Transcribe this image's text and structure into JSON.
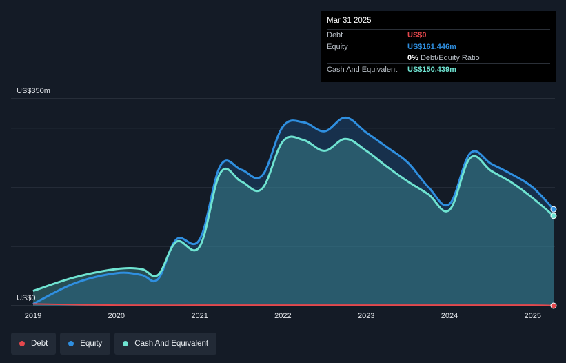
{
  "tooltip": {
    "date": "Mar 31 2025",
    "debt_label": "Debt",
    "debt_value": "US$0",
    "equity_label": "Equity",
    "equity_value": "US$161.446m",
    "ratio_value": "0%",
    "ratio_label": "Debt/Equity Ratio",
    "cash_label": "Cash And Equivalent",
    "cash_value": "US$150.439m"
  },
  "legend": [
    {
      "label": "Debt",
      "color": "#e5484d"
    },
    {
      "label": "Equity",
      "color": "#2f8fe0"
    },
    {
      "label": "Cash And Equivalent",
      "color": "#6fe3d1"
    }
  ],
  "chart_data": {
    "type": "area",
    "y_top_label": "US$350m",
    "y_bottom_label": "US$0",
    "ylim": [
      0,
      350
    ],
    "xlim": [
      2019.0,
      2025.25
    ],
    "x_ticks": [
      "2019",
      "2020",
      "2021",
      "2022",
      "2023",
      "2024",
      "2025"
    ],
    "grid": true,
    "legend_position": "bottom-left",
    "series": [
      {
        "name": "Equity",
        "color": "#2f8fe0",
        "x": [
          2019.0,
          2019.5,
          2020.0,
          2020.3,
          2020.5,
          2020.72,
          2021.0,
          2021.25,
          2021.5,
          2021.75,
          2022.0,
          2022.25,
          2022.5,
          2022.75,
          2023.0,
          2023.25,
          2023.5,
          2023.75,
          2024.0,
          2024.25,
          2024.5,
          2024.75,
          2025.0,
          2025.25
        ],
        "values": [
          3,
          38,
          55,
          52,
          45,
          112,
          112,
          237,
          230,
          220,
          303,
          310,
          295,
          318,
          293,
          268,
          242,
          200,
          172,
          258,
          240,
          222,
          200,
          163
        ]
      },
      {
        "name": "Cash And Equivalent",
        "color": "#6fe3d1",
        "x": [
          2019.0,
          2019.5,
          2020.0,
          2020.3,
          2020.5,
          2020.72,
          2021.0,
          2021.25,
          2021.5,
          2021.75,
          2022.0,
          2022.25,
          2022.5,
          2022.75,
          2023.0,
          2023.25,
          2023.5,
          2023.75,
          2024.0,
          2024.25,
          2024.5,
          2024.75,
          2025.0,
          2025.25
        ],
        "values": [
          25,
          48,
          62,
          62,
          52,
          108,
          100,
          225,
          210,
          198,
          278,
          280,
          262,
          282,
          262,
          235,
          210,
          188,
          162,
          250,
          228,
          208,
          182,
          152
        ]
      },
      {
        "name": "Debt",
        "color": "#e5484d",
        "x": [
          2019.0,
          2020.0,
          2021.0,
          2022.0,
          2023.0,
          2024.0,
          2025.0,
          2025.25
        ],
        "values": [
          3,
          1,
          1,
          1,
          1,
          1,
          1,
          0
        ]
      }
    ]
  }
}
